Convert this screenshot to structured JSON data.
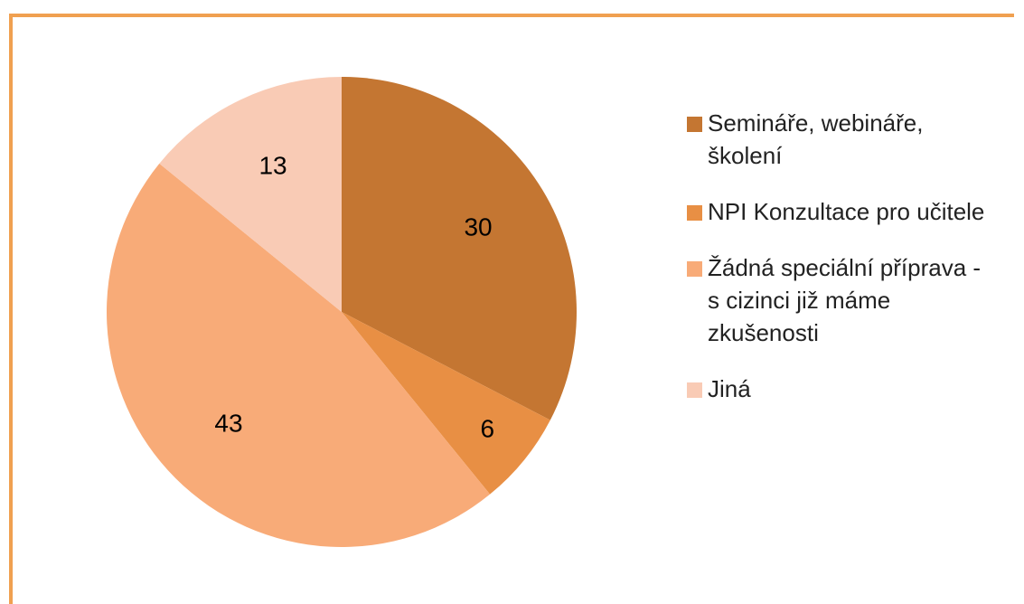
{
  "chart_data": {
    "type": "pie",
    "categories": [
      "Semináře, webináře, školení",
      "NPI Konzultace pro učitele",
      "Žádná speciální příprava - s cizinci již máme zkušenosti",
      "Jiná"
    ],
    "values": [
      30,
      6,
      43,
      13
    ],
    "colors": [
      "#c47632",
      "#e88f44",
      "#f8ab78",
      "#f9cbb5"
    ],
    "legend": "right"
  }
}
